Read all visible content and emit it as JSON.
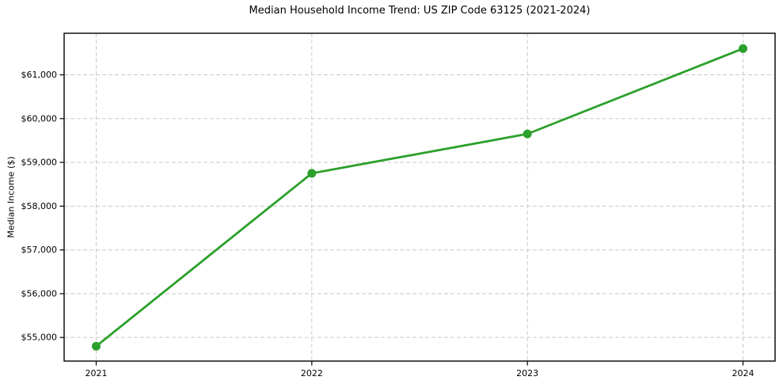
{
  "chart_data": {
    "type": "line",
    "title": "Median Household Income Trend: US ZIP Code 63125 (2021-2024)",
    "xlabel": "",
    "ylabel": "Median Income ($)",
    "categories": [
      "2021",
      "2022",
      "2023",
      "2024"
    ],
    "series": [
      {
        "name": "Median household income",
        "values": [
          54800,
          58750,
          59650,
          61600
        ]
      }
    ],
    "yticks": [
      55000,
      56000,
      57000,
      58000,
      59000,
      60000,
      61000
    ],
    "ytick_labels": [
      "$55,000",
      "$56,000",
      "$57,000",
      "$58,000",
      "$59,000",
      "$60,000",
      "$61,000"
    ],
    "ylim": [
      54460,
      61950
    ],
    "grid": "dashed-both-axes",
    "legend_position": "none",
    "colors": {
      "line": "#2ca02c",
      "marker": "#2ca02c",
      "grid": "#c9c9c9",
      "spine": "#000000",
      "text": "#000000",
      "background": "#ffffff"
    }
  }
}
